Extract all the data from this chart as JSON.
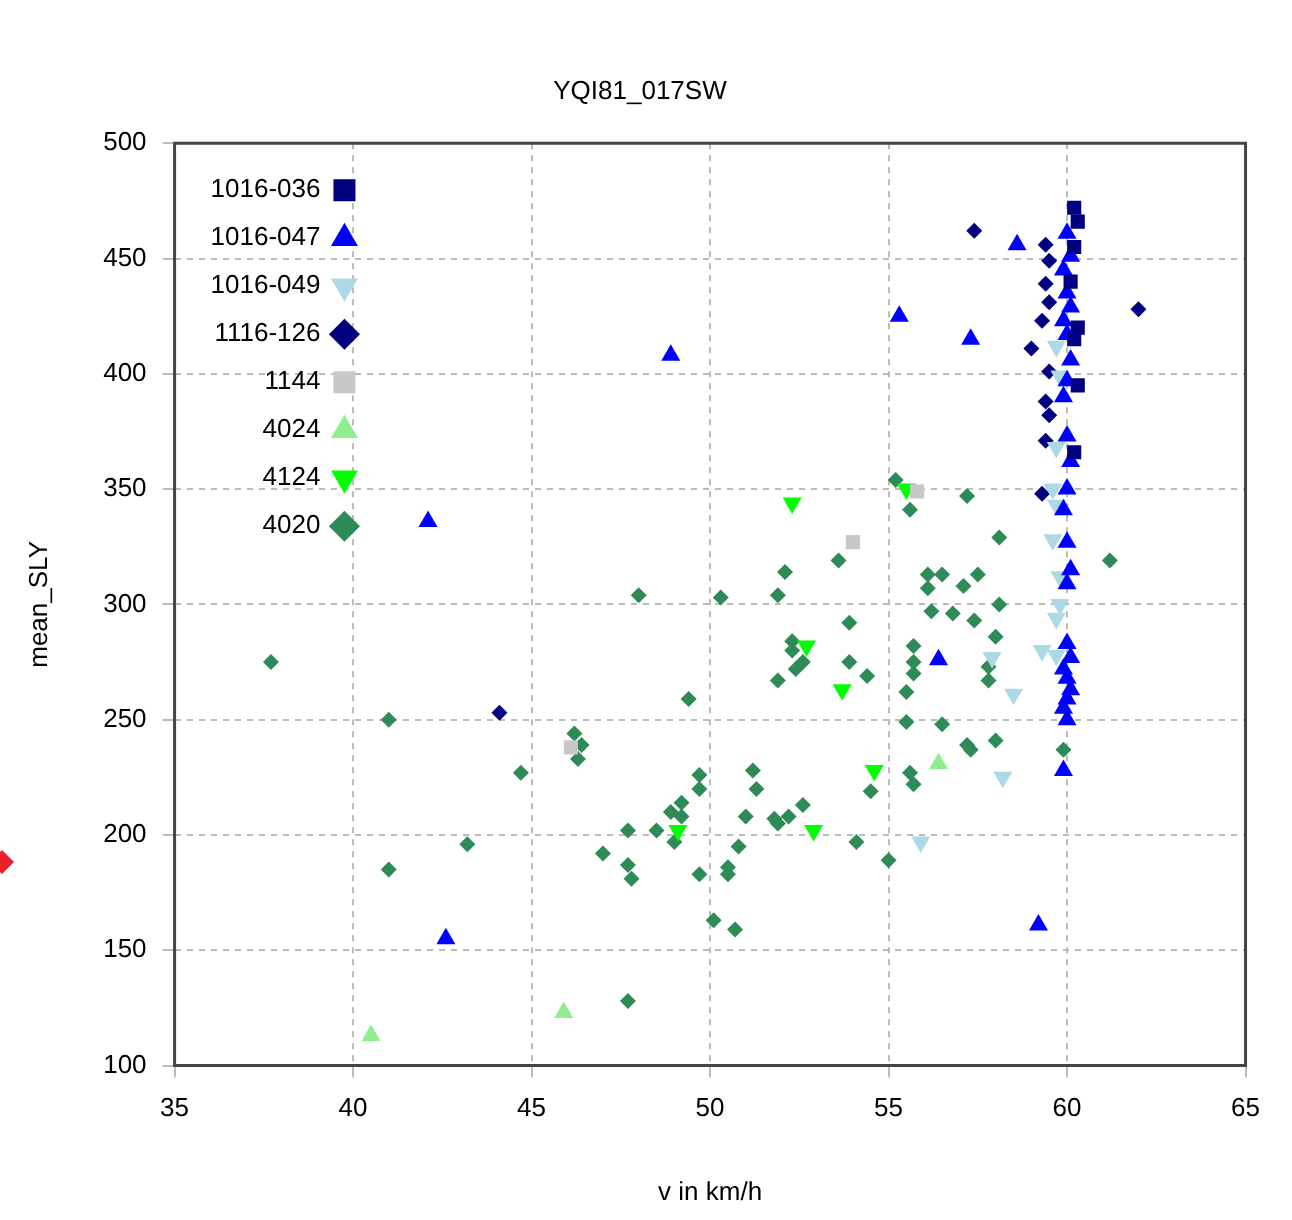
{
  "chart_data": {
    "type": "scatter",
    "title": "YQI81_017SW",
    "xlabel": "v in km/h",
    "ylabel": "mean_SLY",
    "xlim": [
      35,
      65
    ],
    "xticks": [
      35,
      40,
      45,
      50,
      55,
      60,
      65
    ],
    "ylim": [
      100,
      500
    ],
    "yticks": [
      100,
      150,
      200,
      250,
      300,
      350,
      400,
      450,
      500
    ],
    "grid": true,
    "legend": "top left",
    "series": [
      {
        "name": "1016-036",
        "color": "#000080",
        "marker": "square",
        "x": [
          60.2,
          60.3,
          60.2,
          60.1,
          60.3,
          60.2,
          60.3,
          60.2
        ],
        "values": [
          472,
          466,
          455,
          440,
          420,
          415,
          395,
          366
        ]
      },
      {
        "name": "1016-047",
        "color": "#0000ff",
        "marker": "triangle",
        "x": [
          60,
          60.1,
          59.9,
          60,
          60.1,
          59.9,
          60,
          60.1,
          60,
          59.9,
          60,
          60.1,
          60,
          59.9,
          60,
          60.1,
          60,
          60,
          60.1,
          59.9,
          60,
          60.1,
          60,
          59.9,
          60,
          59.9,
          58.6,
          55.3,
          57.3,
          48.9,
          42.1,
          42.6,
          56.4,
          59.2
        ],
        "values": [
          461,
          451,
          445,
          435,
          429,
          423,
          417,
          406,
          397,
          390,
          373,
          362,
          350,
          341,
          327,
          315,
          309,
          283,
          277,
          272,
          268,
          263,
          259,
          255,
          250,
          228,
          456,
          425,
          415,
          408,
          336,
          155,
          276,
          161
        ]
      },
      {
        "name": "1016-049",
        "color": "#add8e6",
        "marker": "triangle-down",
        "x": [
          59.7,
          59.8,
          59.7,
          59.6,
          59.7,
          59.6,
          59.8,
          59.8,
          59.7,
          59.3,
          59.7,
          57.9,
          58.5,
          58.2,
          55.9
        ],
        "values": [
          412,
          399,
          368,
          350,
          343,
          328,
          312,
          300,
          294,
          280,
          278,
          277,
          261,
          225,
          197
        ]
      },
      {
        "name": "1116-126",
        "color": "#000080",
        "marker": "diamond",
        "x": [
          57.4,
          62,
          59,
          44.1,
          59.4,
          59.5,
          59.4,
          59.5,
          59.3,
          59.5,
          59.4,
          59.5,
          59.4,
          59.3
        ],
        "values": [
          462,
          428,
          411,
          253,
          456,
          449,
          439,
          431,
          423,
          401,
          388,
          382,
          371,
          348
        ]
      },
      {
        "name": "1144",
        "color": "#c8c8c8",
        "marker": "square",
        "x": [
          55.8,
          54,
          46.1
        ],
        "values": [
          349,
          327,
          238
        ]
      },
      {
        "name": "4024",
        "color": "#90ee90",
        "marker": "triangle",
        "x": [
          40.5,
          45.9,
          56.4
        ],
        "values": [
          113,
          123,
          231
        ]
      },
      {
        "name": "4124",
        "color": "#00ff00",
        "marker": "triangle-down",
        "x": [
          52.3,
          55.5,
          52.7,
          53.7,
          54.6,
          49.1,
          52.9
        ],
        "values": [
          344,
          350,
          282,
          263,
          228,
          202,
          202
        ]
      },
      {
        "name": "4020",
        "color": "#2e8b57",
        "marker": "diamond",
        "x": [
          37.7,
          41,
          41,
          43.2,
          44.7,
          46.2,
          46.4,
          46.3,
          48,
          49.4,
          47.7,
          48.5,
          48.9,
          49.2,
          49.2,
          49,
          47,
          47.7,
          47.8,
          49.7,
          50.1,
          47.7,
          55.2,
          55.6,
          57.2,
          58.1,
          61.2,
          53.6,
          52.1,
          51.9,
          50.3,
          56.1,
          56.5,
          56.1,
          57.1,
          57.5,
          56.2,
          56.8,
          58.1,
          53.9,
          57.4,
          58,
          52.3,
          52.3,
          52.6,
          52.4,
          51.9,
          53.9,
          54.4,
          55.7,
          55.7,
          55.7,
          55.5,
          57.8,
          57.8,
          55.5,
          56.5,
          57.2,
          57.3,
          58,
          59.9,
          54.5,
          55.6,
          55.7,
          51.2,
          51.3,
          51,
          51.8,
          51.9,
          52.2,
          52.6,
          54.1,
          55,
          50.8,
          50.5,
          50.5,
          50.7,
          49.7,
          49.7
        ],
        "values": [
          275,
          250,
          185,
          196,
          227,
          244,
          239,
          233,
          304,
          259,
          202,
          202,
          210,
          214,
          208,
          197,
          192,
          187,
          181,
          183,
          163,
          128,
          354,
          341,
          347,
          329,
          319,
          319,
          314,
          304,
          303,
          313,
          313,
          307,
          308,
          313,
          297,
          296,
          300,
          292,
          293,
          286,
          284,
          280,
          275,
          272,
          267,
          275,
          269,
          282,
          275,
          270,
          262,
          273,
          267,
          249,
          248,
          239,
          237,
          241,
          237,
          219,
          227,
          222,
          228,
          220,
          208,
          207,
          205,
          208,
          213,
          197,
          189,
          195,
          186,
          183,
          159,
          226,
          220
        ]
      }
    ]
  }
}
